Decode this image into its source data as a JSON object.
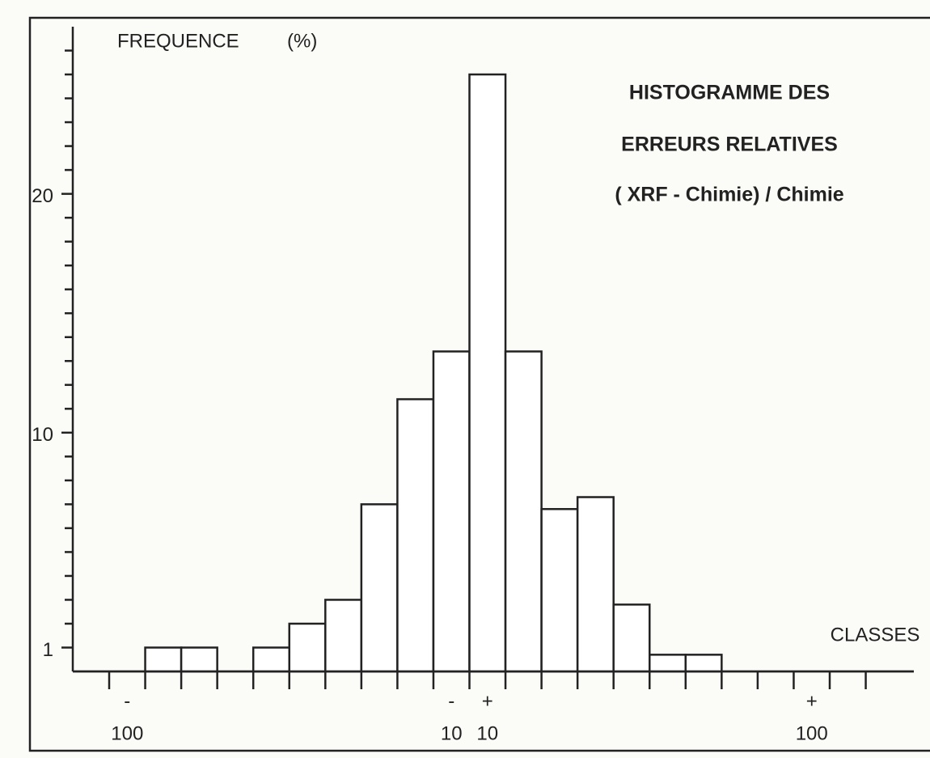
{
  "chart_data": {
    "type": "histogram",
    "title": [
      "HISTOGRAMME DES",
      "ERREURS RELATIVES",
      "( XRF - Chimie) / Chimie"
    ],
    "ylabel": "FREQUENCE",
    "yunit": "(%)",
    "xlabel": "CLASSES",
    "categories": [
      "100",
      null,
      null,
      null,
      null,
      null,
      null,
      null,
      null,
      "10",
      "10",
      null,
      null,
      null,
      null,
      null,
      null,
      null,
      null,
      "100",
      null
    ],
    "category_signs": [
      "-",
      null,
      null,
      null,
      null,
      null,
      null,
      null,
      null,
      "-",
      "+",
      null,
      null,
      null,
      null,
      null,
      null,
      null,
      null,
      "+",
      null
    ],
    "values": [
      0,
      1,
      1,
      0,
      1,
      2,
      3,
      7,
      11.4,
      13.4,
      25,
      13.4,
      6.8,
      7.3,
      2.8,
      0.7,
      0.7,
      0,
      0,
      0,
      0
    ],
    "color": "#ffffff",
    "ylim": [
      0,
      27
    ],
    "yticks": [
      1,
      10,
      20
    ],
    "yminorticks": [
      2,
      3,
      4,
      5,
      6,
      7,
      8,
      9,
      11,
      12,
      13,
      14,
      15,
      16,
      17,
      18,
      19,
      21,
      22,
      23,
      24,
      25,
      26
    ]
  }
}
